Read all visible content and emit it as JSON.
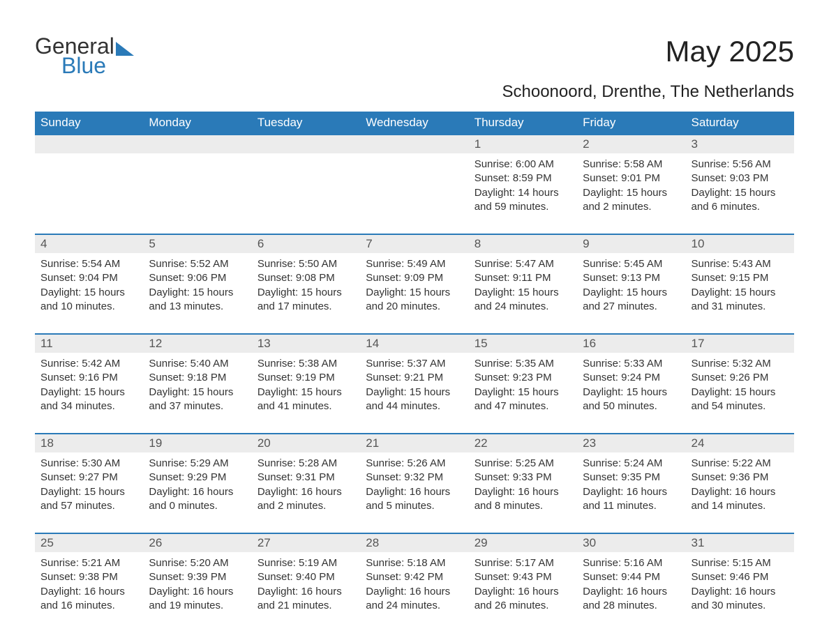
{
  "brand": {
    "word1": "General",
    "word2": "Blue"
  },
  "title": "May 2025",
  "location": "Schoonoord, Drenthe, The Netherlands",
  "colors": {
    "header_bg": "#2a7ab8",
    "header_text": "#ffffff",
    "daynum_bg": "#ececec",
    "rule": "#2a7ab8",
    "body_text": "#333333",
    "page_bg": "#ffffff"
  },
  "columns": [
    "Sunday",
    "Monday",
    "Tuesday",
    "Wednesday",
    "Thursday",
    "Friday",
    "Saturday"
  ],
  "weeks": [
    [
      null,
      null,
      null,
      null,
      {
        "n": "1",
        "sunrise": "Sunrise: 6:00 AM",
        "sunset": "Sunset: 8:59 PM",
        "day": "Daylight: 14 hours and 59 minutes."
      },
      {
        "n": "2",
        "sunrise": "Sunrise: 5:58 AM",
        "sunset": "Sunset: 9:01 PM",
        "day": "Daylight: 15 hours and 2 minutes."
      },
      {
        "n": "3",
        "sunrise": "Sunrise: 5:56 AM",
        "sunset": "Sunset: 9:03 PM",
        "day": "Daylight: 15 hours and 6 minutes."
      }
    ],
    [
      {
        "n": "4",
        "sunrise": "Sunrise: 5:54 AM",
        "sunset": "Sunset: 9:04 PM",
        "day": "Daylight: 15 hours and 10 minutes."
      },
      {
        "n": "5",
        "sunrise": "Sunrise: 5:52 AM",
        "sunset": "Sunset: 9:06 PM",
        "day": "Daylight: 15 hours and 13 minutes."
      },
      {
        "n": "6",
        "sunrise": "Sunrise: 5:50 AM",
        "sunset": "Sunset: 9:08 PM",
        "day": "Daylight: 15 hours and 17 minutes."
      },
      {
        "n": "7",
        "sunrise": "Sunrise: 5:49 AM",
        "sunset": "Sunset: 9:09 PM",
        "day": "Daylight: 15 hours and 20 minutes."
      },
      {
        "n": "8",
        "sunrise": "Sunrise: 5:47 AM",
        "sunset": "Sunset: 9:11 PM",
        "day": "Daylight: 15 hours and 24 minutes."
      },
      {
        "n": "9",
        "sunrise": "Sunrise: 5:45 AM",
        "sunset": "Sunset: 9:13 PM",
        "day": "Daylight: 15 hours and 27 minutes."
      },
      {
        "n": "10",
        "sunrise": "Sunrise: 5:43 AM",
        "sunset": "Sunset: 9:15 PM",
        "day": "Daylight: 15 hours and 31 minutes."
      }
    ],
    [
      {
        "n": "11",
        "sunrise": "Sunrise: 5:42 AM",
        "sunset": "Sunset: 9:16 PM",
        "day": "Daylight: 15 hours and 34 minutes."
      },
      {
        "n": "12",
        "sunrise": "Sunrise: 5:40 AM",
        "sunset": "Sunset: 9:18 PM",
        "day": "Daylight: 15 hours and 37 minutes."
      },
      {
        "n": "13",
        "sunrise": "Sunrise: 5:38 AM",
        "sunset": "Sunset: 9:19 PM",
        "day": "Daylight: 15 hours and 41 minutes."
      },
      {
        "n": "14",
        "sunrise": "Sunrise: 5:37 AM",
        "sunset": "Sunset: 9:21 PM",
        "day": "Daylight: 15 hours and 44 minutes."
      },
      {
        "n": "15",
        "sunrise": "Sunrise: 5:35 AM",
        "sunset": "Sunset: 9:23 PM",
        "day": "Daylight: 15 hours and 47 minutes."
      },
      {
        "n": "16",
        "sunrise": "Sunrise: 5:33 AM",
        "sunset": "Sunset: 9:24 PM",
        "day": "Daylight: 15 hours and 50 minutes."
      },
      {
        "n": "17",
        "sunrise": "Sunrise: 5:32 AM",
        "sunset": "Sunset: 9:26 PM",
        "day": "Daylight: 15 hours and 54 minutes."
      }
    ],
    [
      {
        "n": "18",
        "sunrise": "Sunrise: 5:30 AM",
        "sunset": "Sunset: 9:27 PM",
        "day": "Daylight: 15 hours and 57 minutes."
      },
      {
        "n": "19",
        "sunrise": "Sunrise: 5:29 AM",
        "sunset": "Sunset: 9:29 PM",
        "day": "Daylight: 16 hours and 0 minutes."
      },
      {
        "n": "20",
        "sunrise": "Sunrise: 5:28 AM",
        "sunset": "Sunset: 9:31 PM",
        "day": "Daylight: 16 hours and 2 minutes."
      },
      {
        "n": "21",
        "sunrise": "Sunrise: 5:26 AM",
        "sunset": "Sunset: 9:32 PM",
        "day": "Daylight: 16 hours and 5 minutes."
      },
      {
        "n": "22",
        "sunrise": "Sunrise: 5:25 AM",
        "sunset": "Sunset: 9:33 PM",
        "day": "Daylight: 16 hours and 8 minutes."
      },
      {
        "n": "23",
        "sunrise": "Sunrise: 5:24 AM",
        "sunset": "Sunset: 9:35 PM",
        "day": "Daylight: 16 hours and 11 minutes."
      },
      {
        "n": "24",
        "sunrise": "Sunrise: 5:22 AM",
        "sunset": "Sunset: 9:36 PM",
        "day": "Daylight: 16 hours and 14 minutes."
      }
    ],
    [
      {
        "n": "25",
        "sunrise": "Sunrise: 5:21 AM",
        "sunset": "Sunset: 9:38 PM",
        "day": "Daylight: 16 hours and 16 minutes."
      },
      {
        "n": "26",
        "sunrise": "Sunrise: 5:20 AM",
        "sunset": "Sunset: 9:39 PM",
        "day": "Daylight: 16 hours and 19 minutes."
      },
      {
        "n": "27",
        "sunrise": "Sunrise: 5:19 AM",
        "sunset": "Sunset: 9:40 PM",
        "day": "Daylight: 16 hours and 21 minutes."
      },
      {
        "n": "28",
        "sunrise": "Sunrise: 5:18 AM",
        "sunset": "Sunset: 9:42 PM",
        "day": "Daylight: 16 hours and 24 minutes."
      },
      {
        "n": "29",
        "sunrise": "Sunrise: 5:17 AM",
        "sunset": "Sunset: 9:43 PM",
        "day": "Daylight: 16 hours and 26 minutes."
      },
      {
        "n": "30",
        "sunrise": "Sunrise: 5:16 AM",
        "sunset": "Sunset: 9:44 PM",
        "day": "Daylight: 16 hours and 28 minutes."
      },
      {
        "n": "31",
        "sunrise": "Sunrise: 5:15 AM",
        "sunset": "Sunset: 9:46 PM",
        "day": "Daylight: 16 hours and 30 minutes."
      }
    ]
  ]
}
